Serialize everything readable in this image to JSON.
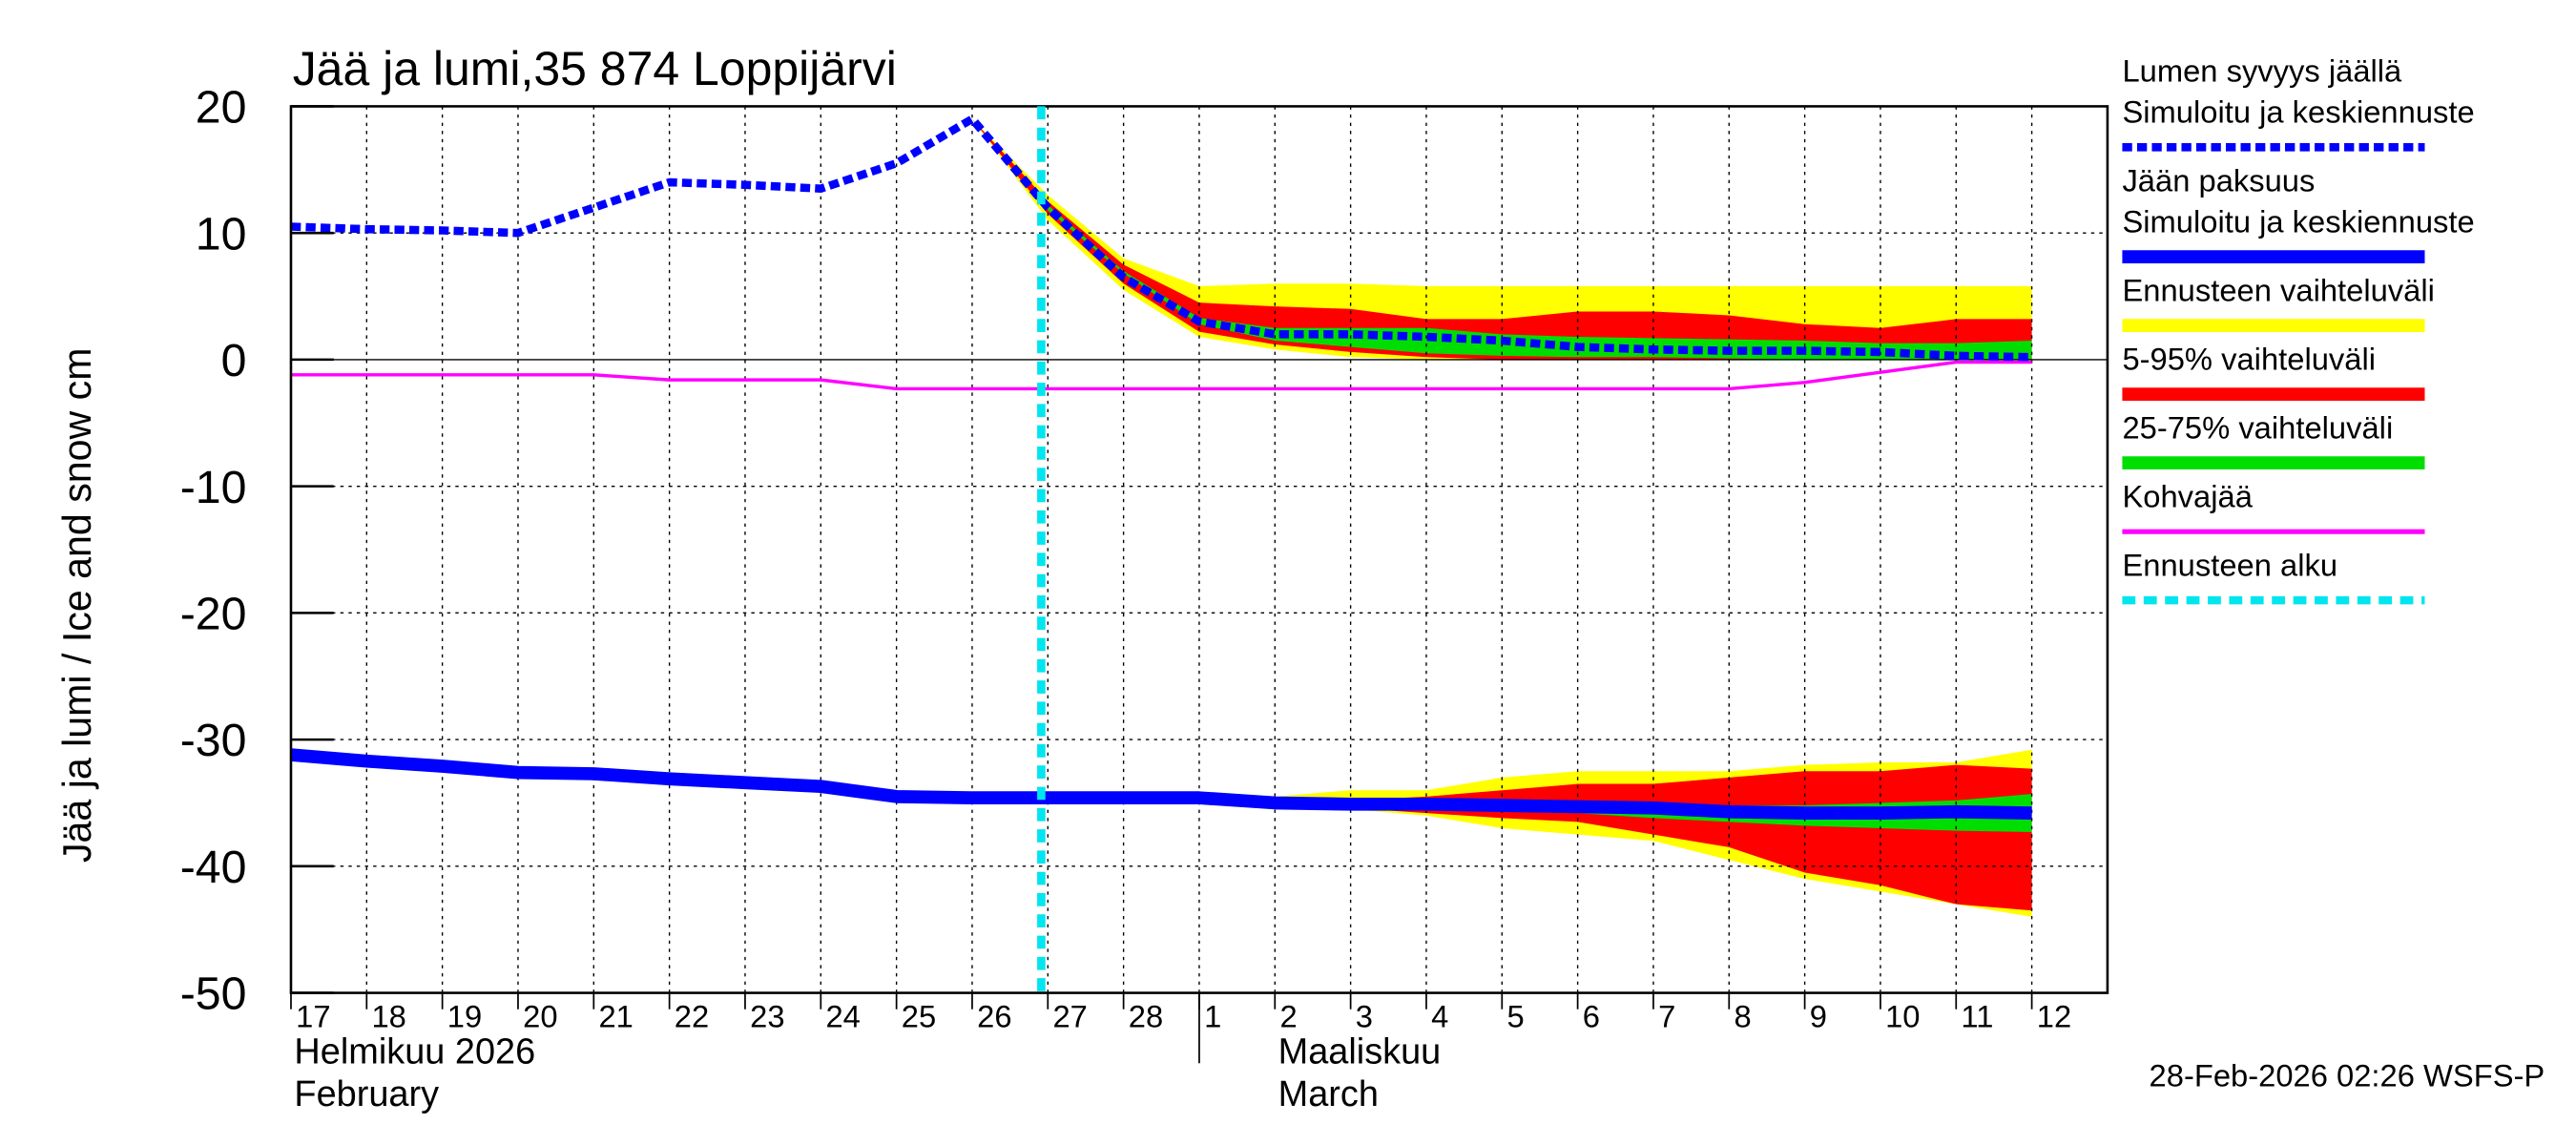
{
  "chart_data": {
    "type": "line",
    "title": "Jää ja lumi,35 874 Loppijärvi",
    "y_label": "Jää ja lumi / Ice and snow    cm",
    "categories": [
      "17",
      "18",
      "19",
      "20",
      "21",
      "22",
      "23",
      "24",
      "25",
      "26",
      "27",
      "28",
      "1",
      "2",
      "3",
      "4",
      "5",
      "6",
      "7",
      "8",
      "9",
      "10",
      "11",
      "12"
    ],
    "months": [
      {
        "index": 0,
        "name": "Helmikuu  2026",
        "name_en": "February"
      },
      {
        "index": 12,
        "name": "Maaliskuu",
        "name_en": "March"
      }
    ],
    "ylim": [
      -50,
      20
    ],
    "yticks": [
      -50,
      -40,
      -30,
      -20,
      -10,
      0,
      10,
      20
    ],
    "grid": true,
    "series": [
      {
        "name": "Lumen syvyys jäällä",
        "label": "Simuloitu ja keskiennuste",
        "color": "#0000ff",
        "dashed": true,
        "values": [
          10.5,
          10.3,
          10.2,
          10,
          12,
          14,
          13.8,
          13.5,
          15.5,
          19,
          12,
          6.5,
          3,
          2,
          2,
          1.8,
          1.5,
          1,
          0.8,
          0.7,
          0.7,
          0.6,
          0.3,
          0.2
        ]
      },
      {
        "name": "Jään paksuus",
        "label": "Simuloitu ja keskiennuste",
        "color": "#0000ff",
        "dashed": false,
        "values": [
          -31.2,
          -31.7,
          -32.1,
          -32.6,
          -32.7,
          -33.1,
          -33.4,
          -33.7,
          -34.5,
          -34.6,
          -34.6,
          -34.6,
          -34.6,
          -35,
          -35.1,
          -35.1,
          -35.2,
          -35.3,
          -35.4,
          -35.7,
          -35.8,
          -35.8,
          -35.7,
          -35.8
        ]
      },
      {
        "name": "Kohvajää",
        "color": "#ff00ff",
        "dashed": false,
        "values": [
          -1.2,
          -1.2,
          -1.2,
          -1.2,
          -1.2,
          -1.6,
          -1.6,
          -1.6,
          -2.3,
          -2.3,
          -2.3,
          -2.3,
          -2.3,
          -2.3,
          -2.3,
          -2.3,
          -2.3,
          -2.3,
          -2.3,
          -2.3,
          -1.8,
          -1,
          -0.2,
          -0.2
        ]
      }
    ],
    "bands": [
      {
        "name": "Ennusteen vaihteluväli",
        "color": "#ffff00",
        "snow_upper": [
          null,
          null,
          null,
          null,
          null,
          null,
          null,
          null,
          null,
          19,
          13,
          8,
          5.8,
          6,
          6,
          5.8,
          5.8,
          5.8,
          5.8,
          5.8,
          5.8,
          5.8,
          5.8,
          5.8
        ],
        "snow_lower": [
          null,
          null,
          null,
          null,
          null,
          null,
          null,
          null,
          null,
          19,
          11,
          5.5,
          1.8,
          0.8,
          0.2,
          0,
          0,
          0,
          0,
          0,
          0,
          0,
          0,
          0
        ],
        "ice_upper": [
          null,
          null,
          null,
          null,
          null,
          null,
          null,
          null,
          null,
          null,
          null,
          null,
          -34.6,
          -34.5,
          -34,
          -34,
          -33,
          -32.5,
          -32.5,
          -32.5,
          -32,
          -31.8,
          -31.8,
          -30.8
        ],
        "ice_lower": [
          null,
          null,
          null,
          null,
          null,
          null,
          null,
          null,
          null,
          null,
          null,
          null,
          -34.6,
          -35.2,
          -35.5,
          -36,
          -37,
          -37.5,
          -38,
          -39.5,
          -41,
          -42,
          -43,
          -44
        ]
      },
      {
        "name": "5-95% vaihteluväli",
        "color": "#ff0000",
        "snow_upper": [
          null,
          null,
          null,
          null,
          null,
          null,
          null,
          null,
          null,
          19,
          12.5,
          7.5,
          4.5,
          4.2,
          4,
          3.2,
          3.2,
          3.8,
          3.8,
          3.5,
          2.8,
          2.5,
          3.2,
          3.2
        ],
        "snow_lower": [
          null,
          null,
          null,
          null,
          null,
          null,
          null,
          null,
          null,
          19,
          11.5,
          6,
          2.2,
          1.2,
          0.6,
          0.2,
          0,
          0,
          0,
          0,
          0,
          0,
          0,
          0
        ],
        "ice_upper": [
          null,
          null,
          null,
          null,
          null,
          null,
          null,
          null,
          null,
          null,
          null,
          null,
          -34.6,
          -34.8,
          -34.8,
          -34.5,
          -34,
          -33.5,
          -33.5,
          -33,
          -32.5,
          -32.5,
          -32,
          -32.3
        ],
        "ice_lower": [
          null,
          null,
          null,
          null,
          null,
          null,
          null,
          null,
          null,
          null,
          null,
          null,
          -34.6,
          -35.1,
          -35.4,
          -35.8,
          -36.2,
          -36.5,
          -37.5,
          -38.5,
          -40.5,
          -41.5,
          -43,
          -43.5
        ]
      },
      {
        "name": "25-75% vaihteluväli",
        "color": "#00dd00",
        "snow_upper": [
          null,
          null,
          null,
          null,
          null,
          null,
          null,
          null,
          null,
          null,
          12.2,
          7,
          3.3,
          2.5,
          2.5,
          2.5,
          2,
          1.8,
          1.7,
          1.6,
          1.5,
          1.3,
          1.3,
          1.5
        ],
        "snow_lower": [
          null,
          null,
          null,
          null,
          null,
          null,
          null,
          null,
          null,
          null,
          11.8,
          6.8,
          2.8,
          1.5,
          1,
          0.5,
          0.3,
          0.2,
          0.2,
          0.1,
          0,
          0,
          0,
          0
        ],
        "ice_upper": [
          null,
          null,
          null,
          null,
          null,
          null,
          null,
          null,
          null,
          null,
          null,
          null,
          -34.6,
          -34.9,
          -35,
          -35,
          -35.1,
          -35.1,
          -35.2,
          -35.2,
          -35.2,
          -35,
          -34.8,
          -34.3
        ],
        "ice_lower": [
          null,
          null,
          null,
          null,
          null,
          null,
          null,
          null,
          null,
          null,
          null,
          null,
          -34.6,
          -35,
          -35.2,
          -35.4,
          -35.6,
          -35.8,
          -36.2,
          -36.5,
          -36.8,
          -37,
          -37.2,
          -37.3
        ]
      }
    ],
    "forecast_start": {
      "name": "Ennusteen alku",
      "index": 10,
      "color": "#00e5ee"
    },
    "timestamp": "28-Feb-2026 02:26 WSFS-P"
  }
}
